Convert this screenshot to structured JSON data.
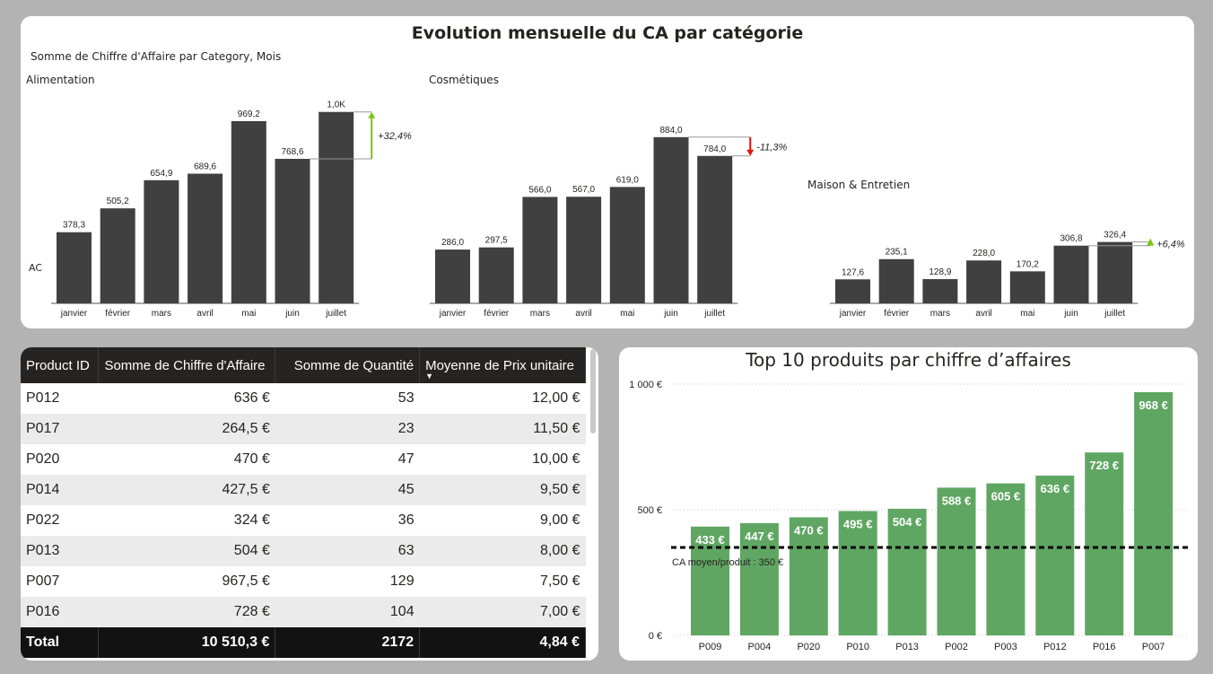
{
  "dashboard": {
    "title": "Evolution mensuelle du CA par catégorie",
    "subtitle": "Somme de Chiffre d'Affaire par Category, Mois",
    "ac_label": "AC"
  },
  "table": {
    "headers": [
      "Product ID",
      "Somme de Chiffre d'Affaire",
      "Somme de Quantité",
      "Moyenne de Prix unitaire"
    ],
    "sort_indicator": "▼",
    "rows": [
      [
        "P012",
        "636 €",
        "53",
        "12,00 €"
      ],
      [
        "P017",
        "264,5 €",
        "23",
        "11,50 €"
      ],
      [
        "P020",
        "470 €",
        "47",
        "10,00 €"
      ],
      [
        "P014",
        "427,5 €",
        "45",
        "9,50 €"
      ],
      [
        "P022",
        "324 €",
        "36",
        "9,00 €"
      ],
      [
        "P013",
        "504 €",
        "63",
        "8,00 €"
      ],
      [
        "P007",
        "967,5 €",
        "129",
        "7,50 €"
      ],
      [
        "P016",
        "728 €",
        "104",
        "7,00 €"
      ]
    ],
    "total": [
      "Total",
      "10 510,3 €",
      "2172",
      "4,84 €"
    ]
  },
  "colors": {
    "small_bar": "#404040",
    "big_bar": "#60a663",
    "up_arrow": "#7cc417",
    "down_arrow": "#e8130f",
    "header_bg": "#252423"
  },
  "chart_data": [
    {
      "type": "bar",
      "title": "Alimentation",
      "categories": [
        "janvier",
        "février",
        "mars",
        "avril",
        "mai",
        "juin",
        "juillet"
      ],
      "values": [
        378.3,
        505.2,
        654.9,
        689.6,
        969.2,
        768.6,
        1018
      ],
      "value_labels": [
        "378,3",
        "505,2",
        "654,9",
        "689,6",
        "969,2",
        "768,6",
        "1,0K"
      ],
      "variance": {
        "label": "+32,4%",
        "direction": "up",
        "style": "arrow"
      }
    },
    {
      "type": "bar",
      "title": "Cosmétiques",
      "categories": [
        "janvier",
        "février",
        "mars",
        "avril",
        "mai",
        "juin",
        "juillet"
      ],
      "values": [
        286.0,
        297.5,
        566.0,
        567.0,
        619.0,
        884.0,
        784.0
      ],
      "value_labels": [
        "286,0",
        "297,5",
        "566,0",
        "567,0",
        "619,0",
        "884,0",
        "784,0"
      ],
      "variance": {
        "label": "-11,3%",
        "direction": "down",
        "style": "arrow"
      }
    },
    {
      "type": "bar",
      "title": "Maison & Entretien",
      "categories": [
        "janvier",
        "février",
        "mars",
        "avril",
        "mai",
        "juin",
        "juillet"
      ],
      "values": [
        127.6,
        235.1,
        128.9,
        228.0,
        170.2,
        306.8,
        326.4
      ],
      "value_labels": [
        "127,6",
        "235,1",
        "128,9",
        "228,0",
        "170,2",
        "306,8",
        "326,4"
      ],
      "variance": {
        "label": "+6,4%",
        "direction": "up",
        "style": "triangle"
      }
    },
    {
      "type": "bar",
      "title": "Top 10 produits par chiffre d’affaires",
      "categories": [
        "P009",
        "P004",
        "P020",
        "P010",
        "P013",
        "P002",
        "P003",
        "P012",
        "P016",
        "P007"
      ],
      "values": [
        433,
        447,
        470,
        495,
        504,
        588,
        605,
        636,
        728,
        968
      ],
      "value_labels": [
        "433 €",
        "447 €",
        "470 €",
        "495 €",
        "504 €",
        "588 €",
        "605 €",
        "636 €",
        "728 €",
        "968 €"
      ],
      "ylim": [
        0,
        1000
      ],
      "yticks": [
        0,
        500,
        1000
      ],
      "ytick_labels": [
        "0 €",
        "500 €",
        "1 000 €"
      ],
      "reference_line": {
        "value": 350,
        "label": "CA moyen/produit : 350 €"
      },
      "grid": true
    }
  ]
}
